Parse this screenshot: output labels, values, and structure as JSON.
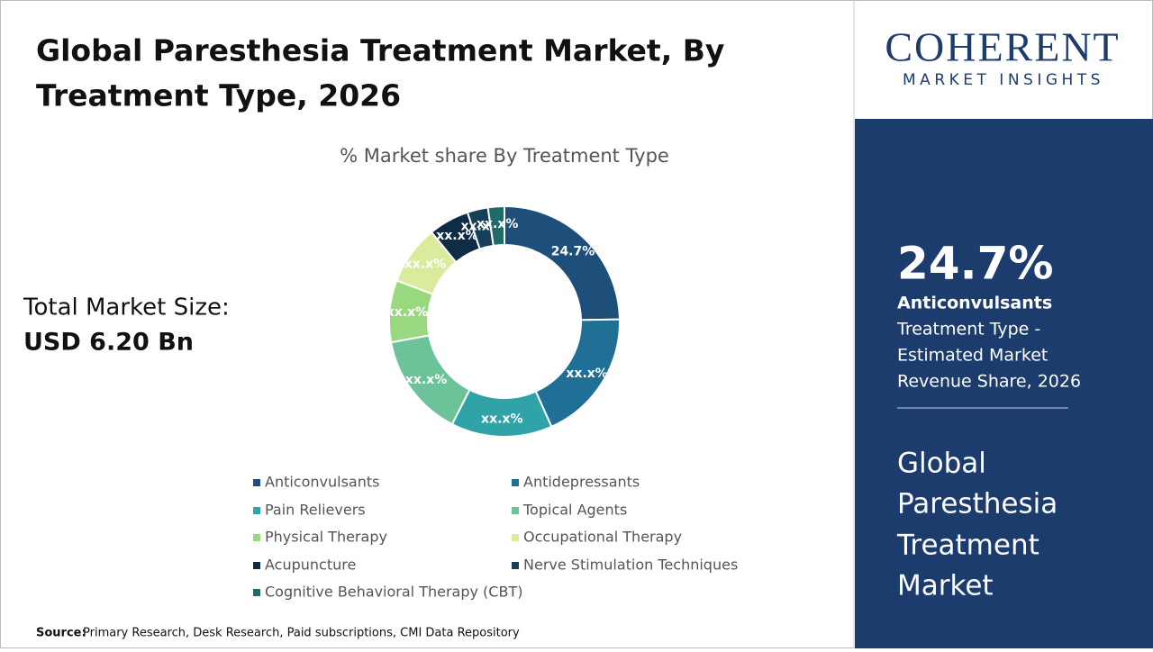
{
  "header": {
    "title_line1": "Global Paresthesia Treatment Market, By",
    "title_line2": "Treatment Type, 2026"
  },
  "market_size": {
    "label": "Total Market Size:",
    "value": "USD 6.20 Bn"
  },
  "chart_data": {
    "type": "donut",
    "title": "% Market share By Treatment Type",
    "categories": [
      "Anticonvulsants",
      "Antidepressants",
      "Pain Relievers",
      "Topical Agents",
      "Physical Therapy",
      "Occupational Therapy",
      "Acupuncture",
      "Nerve Stimulation Techniques",
      "Cognitive Behavioral Therapy (CBT)"
    ],
    "values": [
      24.7,
      18.6,
      14.2,
      14.6,
      8.7,
      8.3,
      5.7,
      2.9,
      2.3
    ],
    "value_labels": [
      "24.7%",
      "xx.x%",
      "xx.x%",
      "xx.x%",
      "xx.x%",
      "xx.x%",
      "xx.x%",
      "xx.x%",
      "xx.x%"
    ],
    "colors": [
      "#1e4f7b",
      "#1f6f97",
      "#2fa3a8",
      "#6cc39a",
      "#9ad87f",
      "#dbeb9c",
      "#0f2c46",
      "#173f57",
      "#1f6b6b"
    ],
    "legend": "bottom"
  },
  "source": {
    "label": "Source:",
    "text": "Primary Research, Desk Research, Paid subscriptions, CMI Data Repository"
  },
  "sidebar": {
    "logo_word": "COHERENT",
    "logo_sub": "MARKET INSIGHTS",
    "highlight_value": "24.7%",
    "highlight_name": "Anticonvulsants",
    "highlight_desc": [
      "Treatment Type -",
      "Estimated Market",
      "Revenue Share, 2026"
    ],
    "market_name": [
      "Global",
      "Paresthesia",
      "Treatment",
      "Market"
    ]
  }
}
